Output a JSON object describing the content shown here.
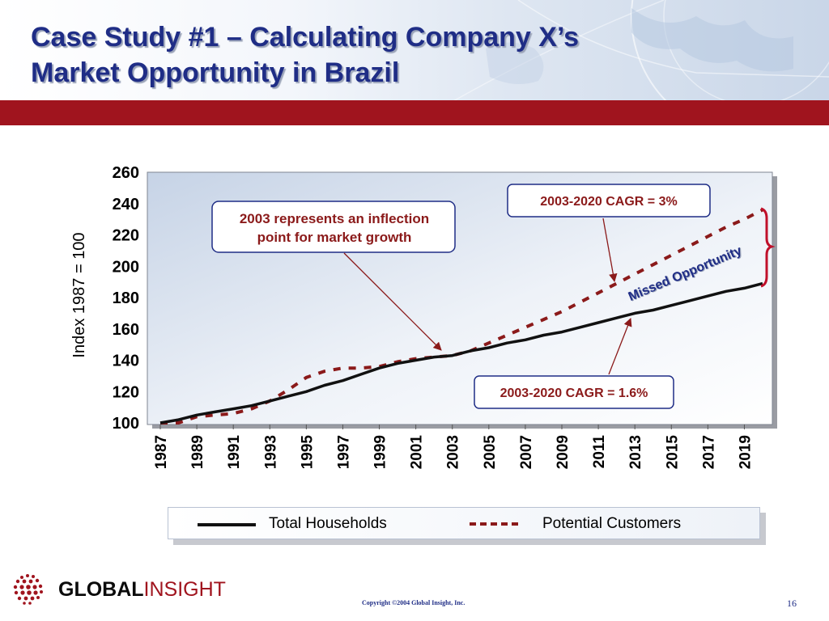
{
  "slide": {
    "title_line1": "Case Study #1 – Calculating Company X’s",
    "title_line2": "Market Opportunity in Brazil",
    "page_number": "16",
    "copyright": "Copyright ©2004 Global Insight, Inc.",
    "logo_bold": "GLOBAL",
    "logo_light": "INSIGHT",
    "colors": {
      "title": "#1f2d86",
      "bar": "#a0141e",
      "dashed_series": "#8b1a1a"
    }
  },
  "chart_data": {
    "type": "line",
    "ylabel": "Index 1987 = 100",
    "xlabel": "",
    "ylim": [
      100,
      260
    ],
    "yticks": [
      100,
      120,
      140,
      160,
      180,
      200,
      220,
      240,
      260
    ],
    "xlim": [
      1987,
      2020
    ],
    "xticks": [
      "1987",
      "1989",
      "1991",
      "1993",
      "1995",
      "1997",
      "1999",
      "2001",
      "2003",
      "2005",
      "2007",
      "2009",
      "2011",
      "2013",
      "2015",
      "2017",
      "2019"
    ],
    "legend_position": "bottom",
    "series": [
      {
        "name": "Total Households",
        "x": [
          1987,
          1988,
          1989,
          1990,
          1991,
          1992,
          1993,
          1994,
          1995,
          1996,
          1997,
          1998,
          1999,
          2000,
          2001,
          2002,
          2003,
          2004,
          2005,
          2006,
          2007,
          2008,
          2009,
          2010,
          2011,
          2012,
          2013,
          2014,
          2015,
          2016,
          2017,
          2018,
          2019,
          2020
        ],
        "values": [
          100,
          102,
          105,
          107,
          109,
          111,
          114,
          117,
          120,
          124,
          127,
          131,
          135,
          138,
          140,
          142,
          143,
          146,
          148,
          151,
          153,
          156,
          158,
          161,
          164,
          167,
          170,
          172,
          175,
          178,
          181,
          184,
          186,
          189
        ]
      },
      {
        "name": "Potential Customers",
        "x": [
          1987,
          1988,
          1989,
          1990,
          1991,
          1992,
          1993,
          1994,
          1995,
          1996,
          1997,
          1998,
          1999,
          2000,
          2001,
          2002,
          2003,
          2004,
          2005,
          2006,
          2007,
          2008,
          2009,
          2010,
          2011,
          2012,
          2013,
          2014,
          2015,
          2016,
          2017,
          2018,
          2019,
          2020
        ],
        "values": [
          100,
          100,
          104,
          105,
          106,
          109,
          114,
          121,
          129,
          133,
          135,
          135,
          136,
          139,
          141,
          142,
          143,
          146,
          151,
          156,
          161,
          166,
          171,
          177,
          183,
          189,
          195,
          201,
          207,
          213,
          219,
          225,
          230,
          236
        ]
      }
    ],
    "annotations": [
      {
        "text_line1": "2003 represents an inflection",
        "text_line2": "point for market growth"
      },
      {
        "text": "2003-2020 CAGR = 3%"
      },
      {
        "text": "2003-2020 CAGR = 1.6%"
      },
      {
        "text": "Missed Opportunity"
      }
    ]
  }
}
